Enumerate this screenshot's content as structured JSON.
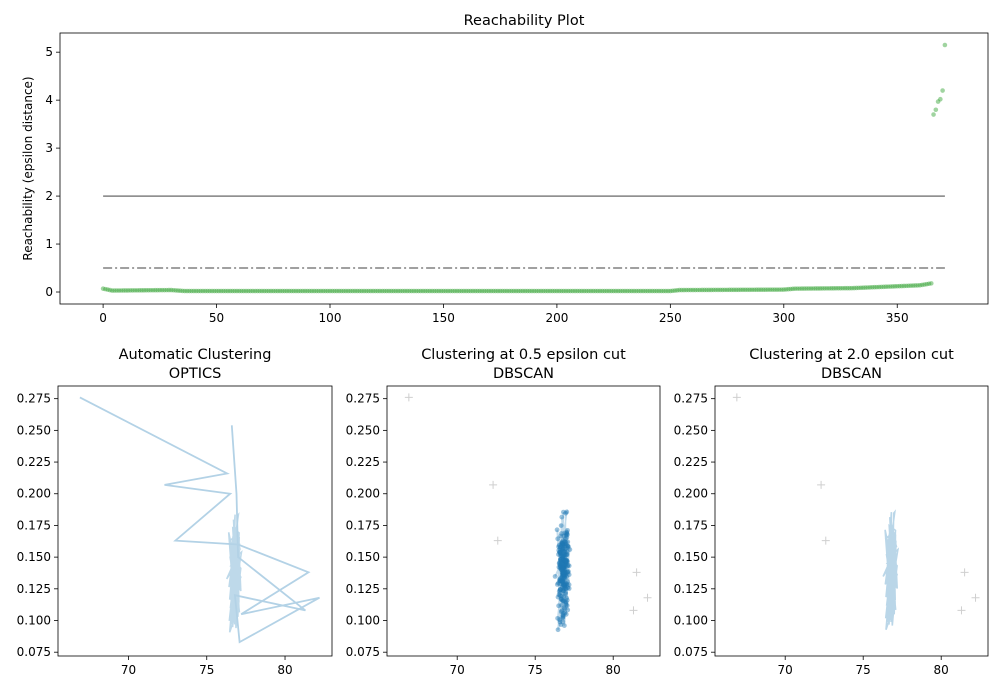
{
  "chart_data": [
    {
      "type": "scatter",
      "title": "Reachability Plot",
      "xlabel": "",
      "ylabel": "Reachability (epsilon distance)",
      "xlim": [
        -19,
        390
      ],
      "ylim": [
        -0.25,
        5.4
      ],
      "xticks": [
        0,
        50,
        100,
        150,
        200,
        250,
        300,
        350
      ],
      "yticks": [
        0,
        1,
        2,
        3,
        4,
        5
      ],
      "point_color": "#2ca02c",
      "n_points": 371,
      "reachability_profile": [
        [
          0,
          0.07
        ],
        [
          4,
          0.03
        ],
        [
          30,
          0.04
        ],
        [
          36,
          0.02
        ],
        [
          250,
          0.02
        ],
        [
          254,
          0.04
        ],
        [
          300,
          0.05
        ],
        [
          305,
          0.07
        ],
        [
          330,
          0.08
        ],
        [
          345,
          0.11
        ],
        [
          360,
          0.14
        ],
        [
          365,
          0.18
        ],
        [
          366,
          0.21
        ]
      ],
      "outliers": [
        [
          366,
          3.7
        ],
        [
          367,
          3.8
        ],
        [
          368,
          3.97
        ],
        [
          369,
          4.02
        ],
        [
          370,
          4.2
        ],
        [
          371,
          5.15
        ]
      ],
      "hlines": [
        {
          "y": 2.0,
          "style": "solid",
          "color": "#808080"
        },
        {
          "y": 0.5,
          "style": "dashdot",
          "color": "#808080"
        }
      ]
    },
    {
      "type": "line",
      "title": "Automatic Clustering\nOPTICS",
      "xlim": [
        65.5,
        83
      ],
      "ylim": [
        0.072,
        0.285
      ],
      "xticks": [
        70,
        75,
        80
      ],
      "yticks": [
        0.075,
        0.1,
        0.125,
        0.15,
        0.175,
        0.2,
        0.225,
        0.25,
        0.275
      ],
      "series_color": "#b3d2e6",
      "x_center": 76.8,
      "y_range": [
        0.08,
        0.25
      ],
      "path_vertices": [
        [
          66.9,
          0.276
        ],
        [
          76.3,
          0.216
        ],
        [
          72.3,
          0.207
        ],
        [
          76.5,
          0.2
        ],
        [
          73.0,
          0.163
        ],
        [
          77.0,
          0.16
        ],
        [
          81.5,
          0.138
        ],
        [
          77.2,
          0.105
        ],
        [
          82.2,
          0.118
        ],
        [
          77.1,
          0.083
        ],
        [
          76.8,
          0.12
        ],
        [
          81.3,
          0.108
        ],
        [
          77.0,
          0.15
        ],
        [
          76.9,
          0.2
        ],
        [
          76.6,
          0.254
        ]
      ]
    },
    {
      "type": "scatter",
      "title": "Clustering at 0.5 epsilon cut\nDBSCAN",
      "xlim": [
        65.5,
        83
      ],
      "ylim": [
        0.072,
        0.285
      ],
      "xticks": [
        70,
        75,
        80
      ],
      "yticks": [
        0.075,
        0.1,
        0.125,
        0.15,
        0.175,
        0.2,
        0.225,
        0.25,
        0.275
      ],
      "cluster_color": "#1f77b4",
      "x_center": 76.8,
      "y_range": [
        0.082,
        0.254
      ],
      "noise_points": [
        [
          66.9,
          0.276
        ],
        [
          72.3,
          0.207
        ],
        [
          72.6,
          0.163
        ],
        [
          81.5,
          0.138
        ],
        [
          82.2,
          0.118
        ],
        [
          81.3,
          0.108
        ]
      ]
    },
    {
      "type": "line",
      "title": "Clustering at 2.0 epsilon cut\nDBSCAN",
      "xlim": [
        65.5,
        83
      ],
      "ylim": [
        0.072,
        0.285
      ],
      "xticks": [
        70,
        75,
        80
      ],
      "yticks": [
        0.075,
        0.1,
        0.125,
        0.15,
        0.175,
        0.2,
        0.225,
        0.25,
        0.275
      ],
      "series_color": "#b3d2e6",
      "x_center": 76.8,
      "y_range": [
        0.082,
        0.254
      ],
      "noise_points": [
        [
          66.9,
          0.276
        ],
        [
          72.3,
          0.207
        ],
        [
          72.6,
          0.163
        ],
        [
          81.5,
          0.138
        ],
        [
          82.2,
          0.118
        ],
        [
          81.3,
          0.108
        ]
      ]
    }
  ]
}
